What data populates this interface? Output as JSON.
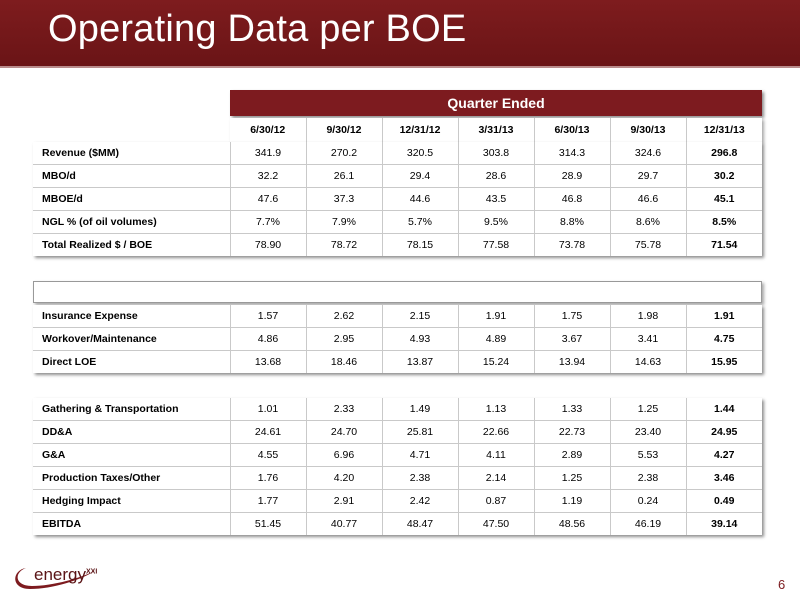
{
  "title": "Operating Data per BOE",
  "quarter_header": "Quarter Ended",
  "columns": [
    "6/30/12",
    "9/30/12",
    "12/31/12",
    "3/31/13",
    "6/30/13",
    "9/30/13",
    "12/31/13"
  ],
  "table1": [
    {
      "label": "Revenue ($MM)",
      "values": [
        "341.9",
        "270.2",
        "320.5",
        "303.8",
        "314.3",
        "324.6",
        "296.8"
      ]
    },
    {
      "label": "MBO/d",
      "values": [
        "32.2",
        "26.1",
        "29.4",
        "28.6",
        "28.9",
        "29.7",
        "30.2"
      ]
    },
    {
      "label": "MBOE/d",
      "values": [
        "47.6",
        "37.3",
        "44.6",
        "43.5",
        "46.8",
        "46.6",
        "45.1"
      ]
    },
    {
      "label": "NGL % (of oil volumes)",
      "values": [
        "7.7%",
        "7.9%",
        "5.7%",
        "9.5%",
        "8.8%",
        "8.6%",
        "8.5%"
      ]
    },
    {
      "label": "Total Realized $ / BOE",
      "values": [
        "78.90",
        "78.72",
        "78.15",
        "77.58",
        "73.78",
        "75.78",
        "71.54"
      ]
    }
  ],
  "table2": [
    {
      "label": "Insurance Expense",
      "values": [
        "1.57",
        "2.62",
        "2.15",
        "1.91",
        "1.75",
        "1.98",
        "1.91"
      ]
    },
    {
      "label": "Workover/Maintenance",
      "values": [
        "4.86",
        "2.95",
        "4.93",
        "4.89",
        "3.67",
        "3.41",
        "4.75"
      ]
    },
    {
      "label": "Direct LOE",
      "values": [
        "13.68",
        "18.46",
        "13.87",
        "15.24",
        "13.94",
        "14.63",
        "15.95"
      ]
    }
  ],
  "table3": [
    {
      "label": "Gathering & Transportation",
      "values": [
        "1.01",
        "2.33",
        "1.49",
        "1.13",
        "1.33",
        "1.25",
        "1.44"
      ]
    },
    {
      "label": "DD&A",
      "values": [
        "24.61",
        "24.70",
        "25.81",
        "22.66",
        "22.73",
        "23.40",
        "24.95"
      ]
    },
    {
      "label": "G&A",
      "values": [
        "4.55",
        "6.96",
        "4.71",
        "4.11",
        "2.89",
        "5.53",
        "4.27"
      ]
    },
    {
      "label": "Production Taxes/Other",
      "values": [
        "1.76",
        "4.20",
        "2.38",
        "2.14",
        "1.25",
        "2.38",
        "3.46"
      ]
    },
    {
      "label": "Hedging Impact",
      "values": [
        "1.77",
        "2.91",
        "2.42",
        "0.87",
        "1.19",
        "0.24",
        "0.49"
      ]
    },
    {
      "label": "EBITDA",
      "values": [
        "51.45",
        "40.77",
        "48.47",
        "47.50",
        "48.56",
        "46.19",
        "39.14"
      ]
    }
  ],
  "logo": {
    "word": "energy",
    "sup": "XXI"
  },
  "page_number": "6",
  "colors": {
    "brand": "#7d1b1f",
    "title_text": "#ffffff"
  }
}
